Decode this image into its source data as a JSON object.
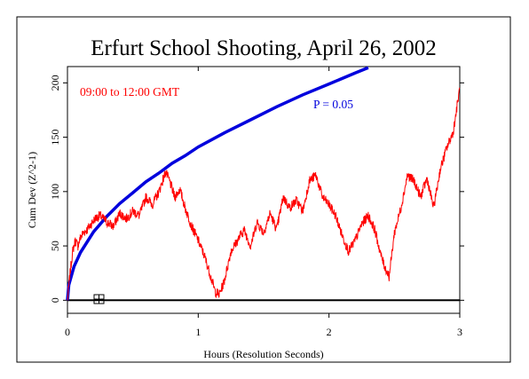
{
  "chart_data": {
    "type": "line",
    "title": "Erfurt School Shooting, April 26, 2002",
    "subtitle": "09:00 to 12:00 GMT",
    "xlabel": "Hours (Resolution Seconds)",
    "ylabel": "Cum Dev (Z^2-1)",
    "xlim": [
      0,
      3
    ],
    "ylim": [
      -12,
      215
    ],
    "xticks": [
      0,
      1,
      2,
      3
    ],
    "yticks": [
      0,
      50,
      100,
      150,
      200
    ],
    "grid": false,
    "annotation": "P = 0.05",
    "colors": {
      "series": "#ff0000",
      "envelope": "#0000dd",
      "baseline": "#000000",
      "subtitle": "#ff0000",
      "annotation": "#0000dd"
    },
    "series": [
      {
        "x": [
          0,
          0.02,
          0.04,
          0.06,
          0.08,
          0.1,
          0.12,
          0.15,
          0.18,
          0.21,
          0.25,
          0.3,
          0.35,
          0.4,
          0.45,
          0.5,
          0.55,
          0.6,
          0.65,
          0.7,
          0.75,
          0.78,
          0.82,
          0.86,
          0.9,
          0.95,
          1.0,
          1.05,
          1.1,
          1.13,
          1.16,
          1.2,
          1.25,
          1.3,
          1.35,
          1.4,
          1.45,
          1.5,
          1.55,
          1.6,
          1.65,
          1.7,
          1.75,
          1.8,
          1.85,
          1.9,
          1.95,
          2.0,
          2.05,
          2.1,
          2.15,
          2.2,
          2.25,
          2.3,
          2.35,
          2.4,
          2.43,
          2.46,
          2.5,
          2.55,
          2.6,
          2.65,
          2.7,
          2.75,
          2.8,
          2.85,
          2.9,
          2.95,
          3.0
        ],
        "values": [
          0,
          25,
          45,
          55,
          50,
          58,
          62,
          65,
          70,
          75,
          78,
          72,
          68,
          80,
          75,
          82,
          78,
          95,
          88,
          100,
          118,
          110,
          95,
          102,
          85,
          68,
          55,
          40,
          20,
          8,
          5,
          18,
          45,
          55,
          65,
          50,
          72,
          62,
          80,
          65,
          95,
          85,
          92,
          82,
          110,
          115,
          95,
          88,
          78,
          60,
          45,
          55,
          70,
          78,
          65,
          40,
          30,
          22,
          62,
          85,
          115,
          110,
          95,
          112,
          85,
          120,
          140,
          155,
          195
        ]
      },
      {
        "x": [
          0,
          0.01,
          0.05,
          0.1,
          0.2,
          0.3,
          0.4,
          0.5,
          0.6,
          0.7,
          0.8,
          0.9,
          1.0,
          1.2,
          1.4,
          1.6,
          1.8,
          2.0,
          2.2,
          2.3
        ],
        "values": [
          0,
          14,
          31,
          44,
          63,
          77,
          89,
          99,
          109,
          117,
          126,
          133,
          141,
          154,
          166,
          178,
          189,
          199,
          209,
          214
        ]
      }
    ],
    "baseline": 0
  }
}
